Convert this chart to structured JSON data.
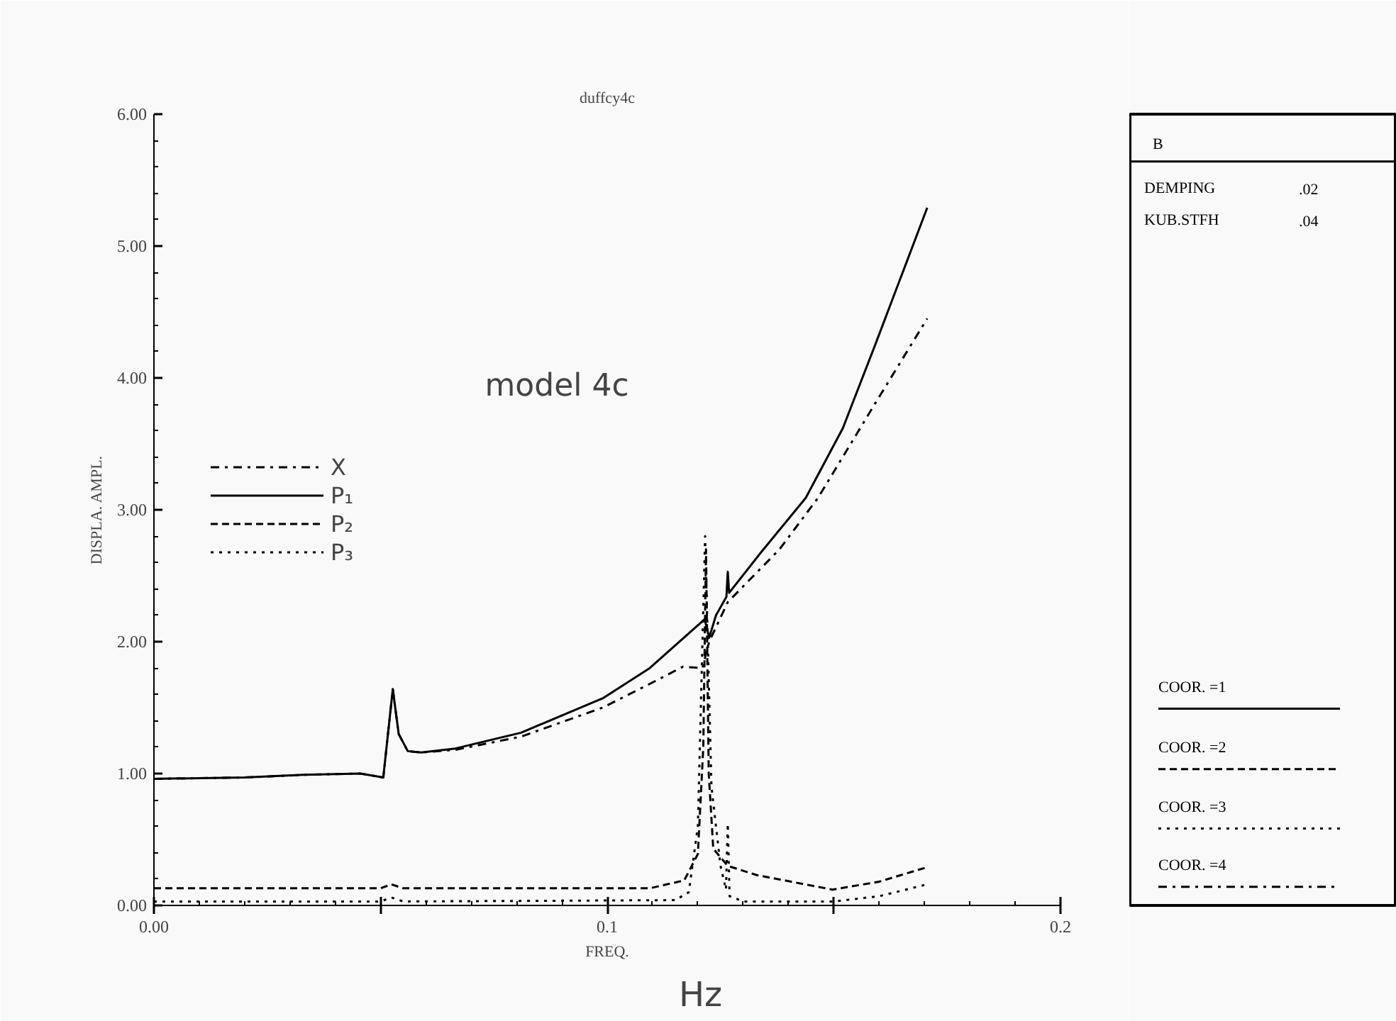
{
  "chart_data": {
    "type": "line",
    "title": "duffcy4c",
    "xlabel": "FREQ.",
    "ylabel": "DISPLA. AMPL.",
    "xlim": [
      0,
      0.2
    ],
    "ylim": [
      0,
      6
    ],
    "xticks": [
      {
        "value": 0,
        "label": "0.00"
      },
      {
        "value": 0.05,
        "label": null
      },
      {
        "value": 0.1,
        "label": "0.1"
      },
      {
        "value": 0.15,
        "label": null
      },
      {
        "value": 0.2,
        "label": "0.2"
      }
    ],
    "yticks": [
      {
        "value": 0,
        "label": "0.00"
      },
      {
        "value": 1,
        "label": "1.00"
      },
      {
        "value": 2,
        "label": "2.00"
      },
      {
        "value": 3,
        "label": "3.00"
      },
      {
        "value": 4,
        "label": "4.00"
      },
      {
        "value": 5,
        "label": "5.00"
      },
      {
        "value": 6,
        "label": "6.00"
      }
    ],
    "grid": false,
    "legend": "left",
    "series": [
      {
        "name": "X",
        "color": "#000000",
        "line_style": "dashdot",
        "x": [
          0,
          0.02,
          0.033,
          0.0455,
          0.0506,
          0.0527,
          0.054,
          0.056,
          0.059,
          0.0665,
          0.081,
          0.099,
          0.1094,
          0.1167,
          0.121,
          0.1225,
          0.1266,
          0.138,
          0.1465,
          0.159,
          0.1706
        ],
        "values": [
          0.96,
          0.97,
          0.99,
          1.0,
          0.97,
          1.64,
          1.3,
          1.17,
          1.16,
          1.18,
          1.28,
          1.5,
          1.68,
          1.81,
          1.8,
          2.0,
          2.3,
          2.7,
          3.09,
          3.8,
          4.45
        ]
      },
      {
        "name": "P₁",
        "color": "#000000",
        "line_style": "solid",
        "x": [
          0,
          0.02,
          0.033,
          0.0455,
          0.0506,
          0.0527,
          0.054,
          0.056,
          0.059,
          0.0665,
          0.081,
          0.099,
          0.1094,
          0.1215,
          0.1225,
          0.124,
          0.1263,
          0.1266,
          0.1269,
          0.134,
          0.1438,
          0.152,
          0.159,
          0.1706
        ],
        "values": [
          0.96,
          0.97,
          0.99,
          1.0,
          0.97,
          1.64,
          1.3,
          1.17,
          1.16,
          1.19,
          1.31,
          1.57,
          1.8,
          2.17,
          2.03,
          2.2,
          2.34,
          2.53,
          2.37,
          2.68,
          3.09,
          3.62,
          4.24,
          5.29
        ]
      },
      {
        "name": "P₂",
        "color": "#000000",
        "line_style": "dashed",
        "x": [
          0,
          0.05,
          0.0524,
          0.055,
          0.1,
          0.1094,
          0.117,
          0.12,
          0.1212,
          0.1218,
          0.1224,
          0.1234,
          0.1266,
          0.133,
          0.1497,
          0.16,
          0.1706
        ],
        "values": [
          0.13,
          0.13,
          0.16,
          0.13,
          0.13,
          0.13,
          0.19,
          0.39,
          1.2,
          2.7,
          1.0,
          0.43,
          0.3,
          0.23,
          0.12,
          0.18,
          0.29
        ]
      },
      {
        "name": "P₃",
        "color": "#000000",
        "line_style": "dotted",
        "x": [
          0,
          0.05,
          0.0524,
          0.055,
          0.115,
          0.118,
          0.12,
          0.1216,
          0.123,
          0.125,
          0.1262,
          0.1266,
          0.127,
          0.13,
          0.15,
          0.16,
          0.1706
        ],
        "values": [
          0.03,
          0.03,
          0.06,
          0.03,
          0.04,
          0.1,
          0.6,
          2.8,
          0.9,
          0.3,
          0.12,
          0.62,
          0.07,
          0.03,
          0.03,
          0.07,
          0.16
        ]
      }
    ],
    "annotations": [
      "model 4c",
      "Hz",
      "B",
      "DEMPING",
      ".02",
      "KUB.STFH",
      ".04",
      "COOR. =1",
      "COOR. =2",
      "COOR. =3",
      "COOR. =4"
    ]
  }
}
